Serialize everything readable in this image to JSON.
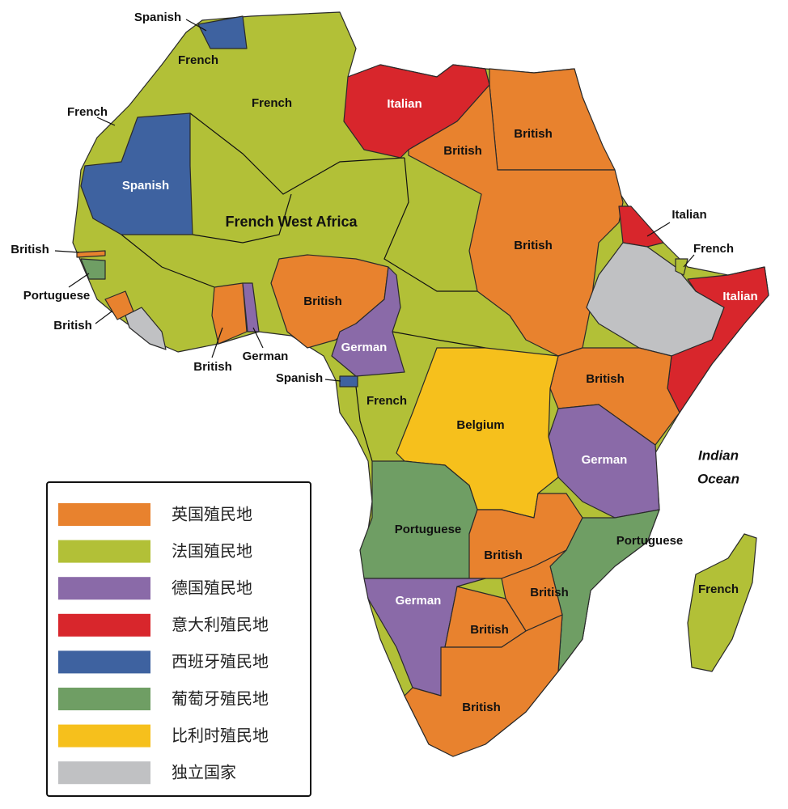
{
  "map": {
    "labels": [
      "Spanish",
      "French",
      "French",
      "Italian",
      "French",
      "British",
      "British",
      "Spanish",
      "French West Africa",
      "Italian",
      "British",
      "French",
      "British",
      "Italian",
      "Portuguese",
      "British",
      "British",
      "German",
      "German",
      "British",
      "Spanish",
      "British",
      "French",
      "Belgium",
      "German",
      "Portuguese",
      "Portuguese",
      "British",
      "French",
      "British",
      "German",
      "British",
      "British"
    ],
    "ocean": [
      "Indian",
      "Ocean"
    ],
    "legend": [
      {
        "label": "英国殖民地",
        "color": "#e8822e"
      },
      {
        "label": "法国殖民地",
        "color": "#b2c037"
      },
      {
        "label": "德国殖民地",
        "color": "#8a6aa8"
      },
      {
        "label": "意大利殖民地",
        "color": "#d8262c"
      },
      {
        "label": "西班牙殖民地",
        "color": "#3e62a0"
      },
      {
        "label": "葡萄牙殖民地",
        "color": "#6f9e64"
      },
      {
        "label": "比利时殖民地",
        "color": "#f6c01c"
      },
      {
        "label": "独立国家",
        "color": "#c0c1c3"
      }
    ]
  }
}
